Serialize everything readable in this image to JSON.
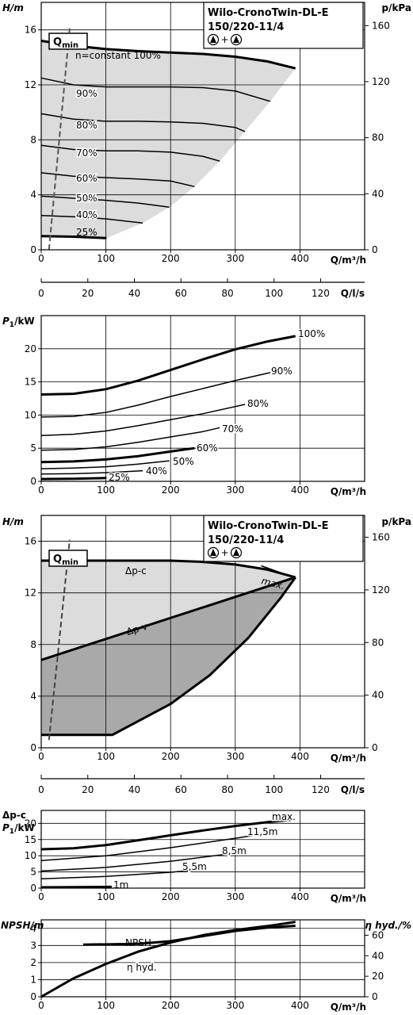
{
  "panel_title": {
    "line1": "Wilo-CronoTwin-DL-E",
    "line2": "150/220-11/4",
    "symbol_plus": "+"
  },
  "qmin": {
    "label_main": "Q",
    "label_sub": "min"
  },
  "chart_data": [
    {
      "id": "h_speed",
      "type": "line",
      "ylabel": "H/m",
      "y2label": "p/kPa",
      "xlabel": "Q/m³/h",
      "xlim": [
        0,
        500
      ],
      "ylim": [
        0,
        18
      ],
      "xticks": [
        0,
        100,
        200,
        300,
        400
      ],
      "yticks": [
        0,
        4,
        8,
        12,
        16
      ],
      "y2ticks": [
        0,
        40,
        80,
        120,
        160
      ],
      "series": [
        {
          "name": "n=constant 100%",
          "x": [
            0,
            50,
            100,
            150,
            200,
            250,
            300,
            350,
            393
          ],
          "y": [
            15.2,
            14.85,
            14.6,
            14.45,
            14.35,
            14.25,
            14.05,
            13.7,
            13.2
          ],
          "bold": true
        },
        {
          "name": "90%",
          "x": [
            0,
            50,
            100,
            150,
            200,
            250,
            300,
            354
          ],
          "y": [
            12.5,
            12.0,
            11.85,
            11.85,
            11.85,
            11.8,
            11.55,
            10.8
          ]
        },
        {
          "name": "80%",
          "x": [
            0,
            50,
            100,
            150,
            200,
            250,
            300,
            315
          ],
          "y": [
            9.9,
            9.5,
            9.35,
            9.35,
            9.3,
            9.2,
            8.9,
            8.6
          ]
        },
        {
          "name": "70%",
          "x": [
            0,
            50,
            100,
            150,
            200,
            250,
            276
          ],
          "y": [
            7.6,
            7.3,
            7.2,
            7.2,
            7.1,
            6.8,
            6.45
          ]
        },
        {
          "name": "60%",
          "x": [
            0,
            50,
            100,
            150,
            200,
            237
          ],
          "y": [
            5.6,
            5.35,
            5.25,
            5.15,
            5.0,
            4.6
          ]
        },
        {
          "name": "50%",
          "x": [
            0,
            50,
            100,
            150,
            198
          ],
          "y": [
            3.9,
            3.75,
            3.6,
            3.4,
            3.1
          ]
        },
        {
          "name": "40%",
          "x": [
            0,
            50,
            100,
            157
          ],
          "y": [
            2.5,
            2.4,
            2.25,
            1.95
          ]
        },
        {
          "name": "25%",
          "x": [
            0,
            50,
            101
          ],
          "y": [
            1.0,
            0.95,
            0.85
          ],
          "bold": true
        }
      ],
      "qmin_line": {
        "x": [
          12,
          44
        ],
        "y": [
          0,
          16
        ]
      },
      "area_fill": "#dcdcdc"
    },
    {
      "id": "q_ls_axis",
      "type": "axis",
      "xlabel": "Q/l/s",
      "xlim": [
        0,
        138.9
      ],
      "xticks": [
        0,
        20,
        40,
        60,
        80,
        100,
        120
      ]
    },
    {
      "id": "p1_speed",
      "type": "line",
      "ylabel": "P1/kW",
      "xlabel": "Q/m³/h",
      "xlim": [
        0,
        500
      ],
      "ylim": [
        0,
        25
      ],
      "xticks": [
        0,
        100,
        200,
        300,
        400
      ],
      "yticks": [
        0,
        5,
        10,
        15,
        20
      ],
      "series": [
        {
          "name": "100%",
          "x": [
            0,
            50,
            100,
            150,
            200,
            250,
            300,
            350,
            393
          ],
          "y": [
            13.1,
            13.2,
            13.9,
            15.2,
            16.8,
            18.4,
            19.9,
            21.1,
            21.9
          ],
          "bold": true
        },
        {
          "name": "90%",
          "x": [
            0,
            50,
            100,
            150,
            200,
            250,
            300,
            354
          ],
          "y": [
            9.7,
            9.8,
            10.4,
            11.5,
            12.8,
            14.0,
            15.2,
            16.4
          ]
        },
        {
          "name": "80%",
          "x": [
            0,
            50,
            100,
            150,
            200,
            250,
            315
          ],
          "y": [
            6.9,
            7.1,
            7.6,
            8.4,
            9.3,
            10.2,
            11.6
          ]
        },
        {
          "name": "70%",
          "x": [
            0,
            50,
            100,
            150,
            200,
            250,
            276
          ],
          "y": [
            4.7,
            4.8,
            5.2,
            5.9,
            6.7,
            7.5,
            8.1
          ]
        },
        {
          "name": "60%",
          "x": [
            0,
            50,
            100,
            150,
            200,
            237
          ],
          "y": [
            2.9,
            3.0,
            3.3,
            3.8,
            4.5,
            5.0
          ],
          "bold": true
        },
        {
          "name": "50%",
          "x": [
            0,
            50,
            100,
            150,
            198
          ],
          "y": [
            1.9,
            2.0,
            2.2,
            2.6,
            3.1
          ]
        },
        {
          "name": "40%",
          "x": [
            0,
            50,
            100,
            157
          ],
          "y": [
            1.1,
            1.15,
            1.3,
            1.6
          ]
        },
        {
          "name": "25%",
          "x": [
            0,
            50,
            101
          ],
          "y": [
            0.35,
            0.4,
            0.5
          ],
          "bold": true
        }
      ]
    },
    {
      "id": "h_dp",
      "type": "line",
      "ylabel": "H/m",
      "y2label": "p/kPa",
      "xlabel": "Q/m³/h",
      "xlim": [
        0,
        500
      ],
      "ylim": [
        0,
        18
      ],
      "xticks": [
        0,
        100,
        200,
        300,
        400
      ],
      "yticks": [
        0,
        4,
        8,
        12,
        16
      ],
      "y2ticks": [
        0,
        40,
        80,
        120,
        160
      ],
      "series": [
        {
          "name": "Δp-c",
          "x": [
            0,
            100,
            200,
            250,
            300,
            350,
            393
          ],
          "y": [
            14.5,
            14.5,
            14.5,
            14.4,
            14.2,
            13.8,
            13.2
          ],
          "bold": true
        },
        {
          "name": "Δp-v",
          "x": [
            0,
            393
          ],
          "y": [
            6.8,
            13.2
          ],
          "bold": true
        },
        {
          "name": "max.",
          "x": [
            340,
            368
          ],
          "y": [
            14.1,
            13.6
          ]
        }
      ],
      "area_light": {
        "x": [
          0,
          0,
          393
        ],
        "y": [
          14.5,
          6.8,
          13.2
        ]
      },
      "area_dark": {
        "x": [
          0,
          0,
          110,
          200,
          260,
          320,
          370,
          393
        ],
        "y": [
          6.8,
          1.0,
          1.0,
          3.4,
          5.6,
          8.5,
          11.6,
          13.2
        ]
      },
      "qmin_line": {
        "x": [
          12,
          44
        ],
        "y": [
          0.6,
          16
        ]
      }
    },
    {
      "id": "q_ls_axis_2",
      "type": "axis",
      "xlabel": "Q/l/s",
      "xlim": [
        0,
        138.9
      ],
      "xticks": [
        0,
        20,
        40,
        60,
        80,
        100,
        120
      ]
    },
    {
      "id": "p1_dp",
      "type": "line",
      "ylabel_line1": "Δp-c",
      "ylabel": "P1/kW",
      "xlabel": "Q/m³/h",
      "xlim": [
        0,
        500
      ],
      "ylim": [
        0,
        24
      ],
      "xticks": [
        0,
        100,
        200,
        300,
        400
      ],
      "yticks": [
        0,
        5,
        10,
        15,
        20
      ],
      "series": [
        {
          "name": "max.",
          "x": [
            0,
            50,
            100,
            150,
            200,
            250,
            300,
            350,
            393
          ],
          "y": [
            12.0,
            12.3,
            13.3,
            14.8,
            16.3,
            17.8,
            19.2,
            20.4,
            21.2
          ],
          "bold": true
        },
        {
          "name": "11,5m",
          "x": [
            0,
            100,
            200,
            300,
            365
          ],
          "y": [
            8.5,
            10.0,
            12.5,
            15.4,
            17.4
          ]
        },
        {
          "name": "8,5m",
          "x": [
            0,
            100,
            200,
            315
          ],
          "y": [
            5.3,
            6.4,
            8.3,
            11.2
          ]
        },
        {
          "name": "5,5m",
          "x": [
            0,
            100,
            200,
            256
          ],
          "y": [
            2.9,
            3.6,
            4.9,
            5.9
          ]
        },
        {
          "name": "1m",
          "x": [
            0,
            50,
            109
          ],
          "y": [
            0.25,
            0.3,
            0.4
          ],
          "bold": true
        }
      ]
    },
    {
      "id": "npsh_eff",
      "type": "line",
      "ylabel": "NPSH/m",
      "y2label": "η hyd./%",
      "xlabel": "Q/m³/h",
      "xlim": [
        0,
        500
      ],
      "ylim": [
        0,
        4.5
      ],
      "y2lim": [
        0,
        75
      ],
      "xticks": [
        0,
        100,
        200,
        300,
        400
      ],
      "yticks": [
        0,
        1,
        2,
        3,
        4
      ],
      "y2ticks": [
        0,
        20,
        40,
        60
      ],
      "series": [
        {
          "name": "NPSH",
          "x": [
            65,
            150,
            200,
            250,
            300,
            350,
            393
          ],
          "y": [
            3.05,
            3.1,
            3.25,
            3.55,
            3.85,
            4.05,
            4.15
          ],
          "axis": "left",
          "bold": true
        },
        {
          "name": "η hyd.",
          "x": [
            0,
            50,
            100,
            150,
            200,
            250,
            300,
            350,
            393
          ],
          "y": [
            0,
            18,
            32,
            44,
            53,
            60,
            65,
            69,
            73
          ],
          "axis": "right",
          "bold": true
        }
      ]
    }
  ]
}
